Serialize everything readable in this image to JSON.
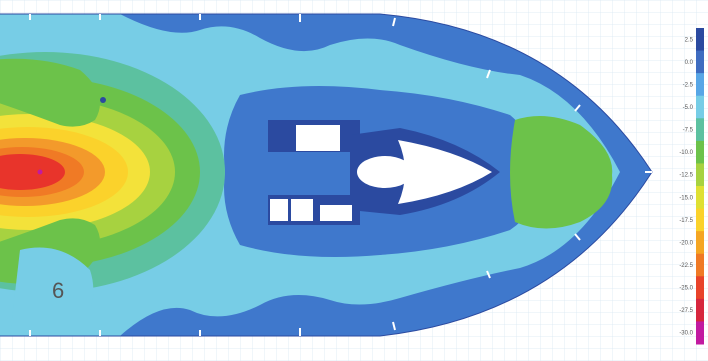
{
  "figure": {
    "label": "6"
  },
  "legend": {
    "title": "",
    "bands": [
      {
        "value": "2.5",
        "color": "#2b4aa0"
      },
      {
        "value": "0.0",
        "color": "#3f6cc0"
      },
      {
        "value": "-2.5",
        "color": "#58a6e6"
      },
      {
        "value": "-5.0",
        "color": "#77cde6"
      },
      {
        "value": "-7.5",
        "color": "#5cc1a0"
      },
      {
        "value": "-10.0",
        "color": "#6cc24a"
      },
      {
        "value": "-12.5",
        "color": "#a7d240"
      },
      {
        "value": "-15.0",
        "color": "#dfe033"
      },
      {
        "value": "-17.5",
        "color": "#fbd22b"
      },
      {
        "value": "-20.0",
        "color": "#f5a623"
      },
      {
        "value": "-22.5",
        "color": "#f07a25"
      },
      {
        "value": "-25.0",
        "color": "#e9432a"
      },
      {
        "value": "-27.5",
        "color": "#d7263d"
      },
      {
        "value": "-30.0",
        "color": "#c21aa0"
      }
    ]
  },
  "colors": {
    "background": "#ffffff",
    "grid": "#d6e6f2",
    "hull_fill": "#3f78cc",
    "hull_outline": "#2b4aa0",
    "zone_light": "#77cde6",
    "zone_green": "#6cc24a",
    "zone_yellow": "#f3e23a",
    "zone_orange": "#f39a2b",
    "zone_red": "#e8342b",
    "structure": "#2b4aa0",
    "opening": "#ffffff"
  }
}
